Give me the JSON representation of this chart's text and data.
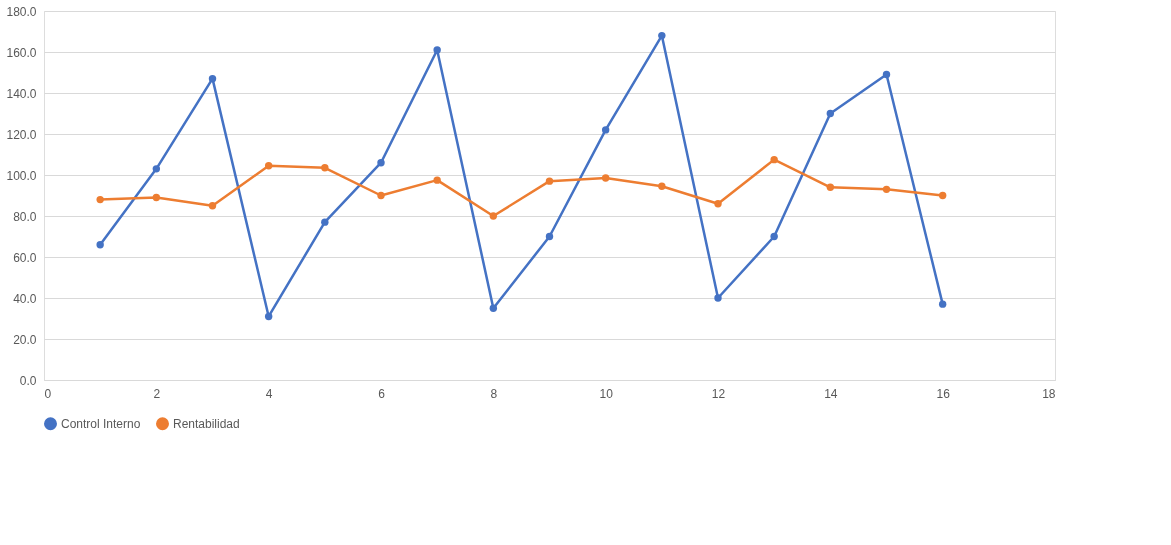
{
  "chart_data": {
    "type": "line",
    "x": [
      1,
      2,
      3,
      4,
      5,
      6,
      7,
      8,
      9,
      10,
      11,
      12,
      13,
      14,
      15,
      16
    ],
    "series": [
      {
        "name": "Control Interno",
        "color": "#4472c4",
        "values": [
          66,
          103,
          147,
          31,
          77,
          106,
          161,
          35,
          70,
          122,
          168,
          40,
          70,
          130,
          149,
          37
        ]
      },
      {
        "name": "Rentabilidad",
        "color": "#ed7d31",
        "values": [
          88,
          89,
          85,
          104.5,
          103.5,
          90,
          97.5,
          80,
          97,
          98.5,
          94.5,
          86,
          107.5,
          94,
          93,
          90
        ]
      }
    ],
    "xlim": [
      0,
      18
    ],
    "xticks": [
      0,
      2,
      4,
      6,
      8,
      10,
      12,
      14,
      16,
      18
    ],
    "ylim": [
      0,
      180
    ],
    "yticks": [
      {
        "value": 0,
        "label": "0.0"
      },
      {
        "value": 20,
        "label": "20.0"
      },
      {
        "value": 40,
        "label": "40.0"
      },
      {
        "value": 60,
        "label": "60.0"
      },
      {
        "value": 80,
        "label": "80.0"
      },
      {
        "value": 100,
        "label": "100.0"
      },
      {
        "value": 120,
        "label": "120.0"
      },
      {
        "value": 140,
        "label": "140.0"
      },
      {
        "value": 160,
        "label": "160.0"
      },
      {
        "value": 180,
        "label": "180.0"
      }
    ],
    "grid": "y",
    "legend": "bottom",
    "marker": "circle",
    "line_style": "solid"
  }
}
